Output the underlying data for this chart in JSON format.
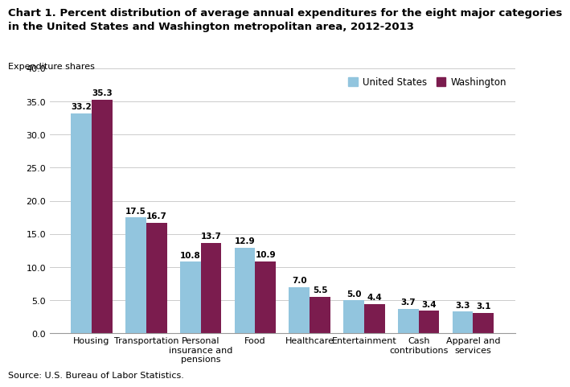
{
  "title": "Chart 1. Percent distribution of average annual expenditures for the eight major categories\nin the United States and Washington metropolitan area, 2012-2013",
  "exp_shares_label": "Expenditure shares",
  "source": "Source: U.S. Bureau of Labor Statistics.",
  "categories": [
    "Housing",
    "Transportation",
    "Personal\ninsurance and\npensions",
    "Food",
    "Healthcare",
    "Entertainment",
    "Cash\ncontributions",
    "Apparel and\nservices"
  ],
  "us_values": [
    33.2,
    17.5,
    10.8,
    12.9,
    7.0,
    5.0,
    3.7,
    3.3
  ],
  "dc_values": [
    35.3,
    16.7,
    13.7,
    10.9,
    5.5,
    4.4,
    3.4,
    3.1
  ],
  "us_color": "#92C5DE",
  "dc_color": "#7B1C4E",
  "ylim": [
    0,
    40.0
  ],
  "yticks": [
    0.0,
    5.0,
    10.0,
    15.0,
    20.0,
    25.0,
    30.0,
    35.0,
    40.0
  ],
  "legend_us": "United States",
  "legend_dc": "Washington",
  "bar_width": 0.38,
  "value_fontsize": 7.5,
  "tick_fontsize": 8,
  "label_fontsize": 8,
  "title_fontsize": 9.5,
  "legend_fontsize": 8.5
}
